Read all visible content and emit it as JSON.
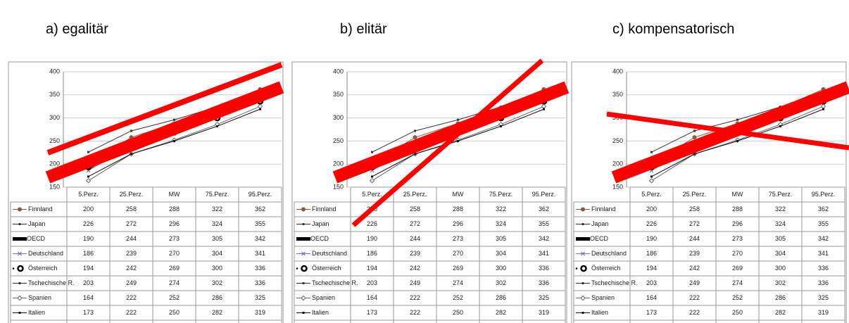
{
  "chart_data": [
    {
      "type": "line",
      "title": "a) egalitär",
      "categories": [
        "5.Perz.",
        "25.Perz.",
        "MW",
        "75.Perz.",
        "95.Perz."
      ],
      "ylim": [
        150,
        400
      ],
      "yticks": [
        150,
        200,
        250,
        300,
        350,
        400
      ],
      "grid": true,
      "series": [
        {
          "name": "Finnland",
          "color": "#8b5a3c",
          "values": [
            200,
            258,
            288,
            322,
            362
          ]
        },
        {
          "name": "Japan",
          "color": "#333333",
          "values": [
            226,
            272,
            296,
            324,
            355
          ]
        },
        {
          "name": "OECD",
          "color": "#000000",
          "values": [
            190,
            244,
            273,
            305,
            342
          ]
        },
        {
          "name": "Deutschland",
          "color": "#7a6fa8",
          "values": [
            186,
            239,
            270,
            304,
            341
          ]
        },
        {
          "name": "Österreich",
          "color": "#000000",
          "values": [
            194,
            242,
            269,
            300,
            336
          ]
        },
        {
          "name": "Tschechische R.",
          "color": "#333333",
          "values": [
            203,
            249,
            274,
            302,
            336
          ]
        },
        {
          "name": "Spanien",
          "color": "#666666",
          "values": [
            164,
            222,
            252,
            286,
            325
          ]
        },
        {
          "name": "Italien",
          "color": "#111111",
          "values": [
            173,
            222,
            250,
            282,
            319
          ]
        }
      ]
    },
    {
      "type": "line",
      "title": "b) elitär",
      "categories": [
        "5.Perz.",
        "25.Perz.",
        "MW",
        "75.Perz.",
        "95.Perz."
      ],
      "ylim": [
        150,
        400
      ],
      "yticks": [
        150,
        200,
        250,
        300,
        350,
        400
      ],
      "grid": true,
      "series": [
        {
          "name": "Finnland",
          "color": "#8b5a3c",
          "values": [
            200,
            258,
            288,
            322,
            362
          ]
        },
        {
          "name": "Japan",
          "color": "#333333",
          "values": [
            226,
            272,
            296,
            324,
            355
          ]
        },
        {
          "name": "OECD",
          "color": "#000000",
          "values": [
            190,
            244,
            273,
            305,
            342
          ]
        },
        {
          "name": "Deutschland",
          "color": "#7a6fa8",
          "values": [
            186,
            239,
            270,
            304,
            341
          ]
        },
        {
          "name": "Österreich",
          "color": "#000000",
          "values": [
            194,
            242,
            269,
            300,
            336
          ]
        },
        {
          "name": "Tschechische R.",
          "color": "#333333",
          "values": [
            203,
            249,
            274,
            302,
            336
          ]
        },
        {
          "name": "Spanien",
          "color": "#666666",
          "values": [
            164,
            222,
            252,
            286,
            325
          ]
        },
        {
          "name": "Italien",
          "color": "#111111",
          "values": [
            173,
            222,
            250,
            282,
            319
          ]
        }
      ]
    },
    {
      "type": "line",
      "title": "c) kompensatorisch",
      "categories": [
        "5.Perz.",
        "25.Perz.",
        "MW",
        "75.Perz.",
        "95.Perz."
      ],
      "ylim": [
        150,
        400
      ],
      "yticks": [
        150,
        200,
        250,
        300,
        350,
        400
      ],
      "grid": true,
      "series": [
        {
          "name": "Finnland",
          "color": "#8b5a3c",
          "values": [
            200,
            258,
            288,
            322,
            362
          ]
        },
        {
          "name": "Japan",
          "color": "#333333",
          "values": [
            226,
            272,
            296,
            324,
            355
          ]
        },
        {
          "name": "OECD",
          "color": "#000000",
          "values": [
            190,
            244,
            273,
            305,
            342
          ]
        },
        {
          "name": "Deutschland",
          "color": "#7a6fa8",
          "values": [
            186,
            239,
            270,
            304,
            341
          ]
        },
        {
          "name": "Österreich",
          "color": "#000000",
          "values": [
            194,
            242,
            269,
            300,
            336
          ]
        },
        {
          "name": "Tschechische R.",
          "color": "#333333",
          "values": [
            203,
            249,
            274,
            302,
            336
          ]
        },
        {
          "name": "Spanien",
          "color": "#666666",
          "values": [
            164,
            222,
            252,
            286,
            325
          ]
        },
        {
          "name": "Italien",
          "color": "#111111",
          "values": [
            173,
            222,
            250,
            282,
            319
          ]
        }
      ]
    }
  ]
}
